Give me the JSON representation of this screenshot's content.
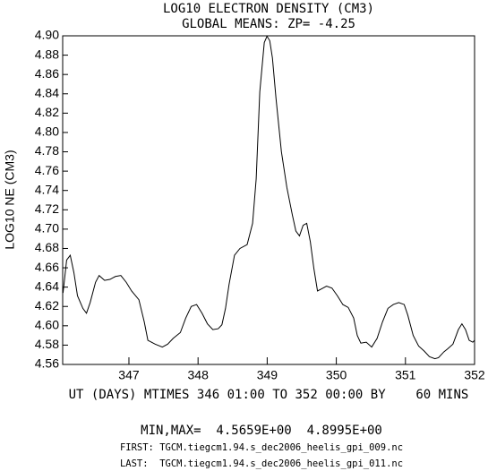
{
  "chart_data": {
    "type": "line",
    "title": "LOG10 ELECTRON DENSITY (CM3)",
    "subtitle": "GLOBAL MEANS: ZP= -4.25",
    "y_label": "LOG10 NE (CM3)",
    "x_label": "UT (DAYS) MTIMES 346 01:00 TO 352 00:00 BY    60 MINS",
    "annotations": [
      "MIN,MAX=  4.5659E+00  4.8995E+00",
      "FIRST: TGCM.tiegcm1.94.s_dec2006_heelis_gpi_009.nc",
      "LAST:  TGCM.tiegcm1.94.s_dec2006_heelis_gpi_011.nc"
    ],
    "xlim": [
      346.0417,
      352
    ],
    "xticks": [
      347,
      348,
      349,
      350,
      351,
      352
    ],
    "ylim": [
      4.56,
      4.9
    ],
    "yticks": [
      4.56,
      4.58,
      {
        "value": 4.6,
        "label": "4.60"
      },
      4.62,
      4.64,
      4.66,
      4.68,
      {
        "value": 4.7,
        "label": "4.70"
      },
      4.72,
      4.74,
      4.76,
      4.78,
      {
        "value": 4.8,
        "label": "4.80"
      },
      4.82,
      4.84,
      4.86,
      4.88,
      {
        "value": 4.9,
        "label": "4.90"
      }
    ],
    "grid": false,
    "color": "#000000",
    "x": [
      346.047,
      346.099,
      346.151,
      346.204,
      346.256,
      346.334,
      346.386,
      346.439,
      346.517,
      346.569,
      346.648,
      346.726,
      346.804,
      346.883,
      346.961,
      347.039,
      347.144,
      347.222,
      347.274,
      347.379,
      347.483,
      347.561,
      347.64,
      347.744,
      347.822,
      347.901,
      347.979,
      348.057,
      348.136,
      348.214,
      348.292,
      348.345,
      348.397,
      348.449,
      348.527,
      348.606,
      348.71,
      348.789,
      348.841,
      348.893,
      348.958,
      348.997,
      349.037,
      349.076,
      349.128,
      349.206,
      349.285,
      349.363,
      349.415,
      349.467,
      349.52,
      349.572,
      349.624,
      349.676,
      349.728,
      349.781,
      349.859,
      349.937,
      350.016,
      350.094,
      350.172,
      350.251,
      350.303,
      350.355,
      350.433,
      350.512,
      350.59,
      350.668,
      350.747,
      350.825,
      350.903,
      350.982,
      351.034,
      351.112,
      351.191,
      351.269,
      351.347,
      351.426,
      351.478,
      351.556,
      351.608,
      351.687,
      351.765,
      351.817,
      351.869,
      351.922,
      351.974,
      352.0
    ],
    "values": [
      4.634,
      4.668,
      4.673,
      4.655,
      4.631,
      4.618,
      4.613,
      4.624,
      4.645,
      4.652,
      4.647,
      4.648,
      4.651,
      4.652,
      4.645,
      4.636,
      4.627,
      4.604,
      4.585,
      4.581,
      4.578,
      4.581,
      4.587,
      4.593,
      4.608,
      4.62,
      4.622,
      4.613,
      4.602,
      4.596,
      4.597,
      4.601,
      4.618,
      4.643,
      4.673,
      4.68,
      4.684,
      4.706,
      4.752,
      4.842,
      4.893,
      4.8995,
      4.895,
      4.877,
      4.835,
      4.78,
      4.743,
      4.715,
      4.698,
      4.693,
      4.704,
      4.706,
      4.687,
      4.659,
      4.636,
      4.638,
      4.641,
      4.639,
      4.631,
      4.622,
      4.619,
      4.608,
      4.59,
      4.582,
      4.583,
      4.578,
      4.587,
      4.604,
      4.618,
      4.622,
      4.624,
      4.622,
      4.611,
      4.59,
      4.579,
      4.574,
      4.568,
      4.5659,
      4.567,
      4.573,
      4.576,
      4.581,
      4.596,
      4.602,
      4.596,
      4.585,
      4.583,
      4.585
    ]
  }
}
